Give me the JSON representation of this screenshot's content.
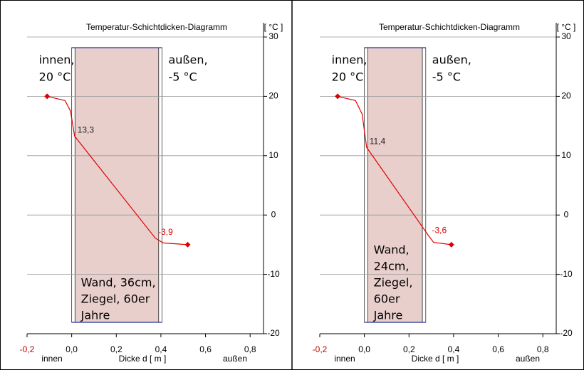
{
  "chart_data": [
    {
      "type": "line",
      "title": "Temperatur-Schichtdicken-Diagramm",
      "y_unit": "[ °C ]",
      "x_label": "Dicke d [ m ]",
      "x_left_label": "innen",
      "x_right_label": "außen",
      "inside_label": [
        "innen,",
        "20 °C"
      ],
      "outside_label": [
        "außen,",
        "-5 °C"
      ],
      "wall_label": [
        "Wand, 36cm,",
        "Ziegel, 60er",
        "Jahre"
      ],
      "layers": [
        {
          "from": 0,
          "to": 0.015,
          "color": "#ffffff"
        },
        {
          "from": 0.015,
          "to": 0.39,
          "color": "#e8cfcc"
        },
        {
          "from": 0.39,
          "to": 0.405,
          "color": "#ffffff"
        }
      ],
      "series": [
        {
          "color": "#e00000",
          "x": [
            -0.11,
            -0.03,
            -0.005,
            0.013,
            0.375,
            0.41,
            0.52
          ],
          "values": [
            20,
            19.3,
            17.5,
            13.3,
            -3.9,
            -4.7,
            -5
          ],
          "value_labels": [
            null,
            null,
            null,
            "13,3",
            "-3,9",
            null,
            null
          ]
        }
      ],
      "xlim": [
        -0.2,
        0.86
      ],
      "ylim": [
        -20,
        30
      ],
      "xticks": [
        {
          "value": -0.2,
          "label": "-0,2"
        },
        {
          "value": 0,
          "label": "0,0"
        },
        {
          "value": 0.2,
          "label": "0,2"
        },
        {
          "value": 0.4,
          "label": "0,4"
        },
        {
          "value": 0.6,
          "label": "0,6"
        },
        {
          "value": 0.8,
          "label": "0,8"
        }
      ],
      "yticks": [
        30,
        20,
        10,
        0,
        -10,
        -20
      ],
      "grid": true
    },
    {
      "type": "line",
      "title": "Temperatur-Schichtdicken-Diagramm",
      "y_unit": "[ °C ]",
      "x_label": "Dicke d [ m ]",
      "x_left_label": "innen",
      "x_right_label": "außen",
      "inside_label": [
        "innen,",
        "20 °C"
      ],
      "outside_label": [
        "außen,",
        "-5 °C"
      ],
      "wall_label": [
        "Wand,",
        "24cm,",
        "Ziegel,",
        "60er",
        "Jahre"
      ],
      "layers": [
        {
          "from": 0,
          "to": 0.015,
          "color": "#ffffff"
        },
        {
          "from": 0.015,
          "to": 0.26,
          "color": "#e8cfcc"
        },
        {
          "from": 0.26,
          "to": 0.275,
          "color": "#ffffff"
        }
      ],
      "series": [
        {
          "color": "#e00000",
          "x": [
            -0.12,
            -0.04,
            -0.01,
            0.01,
            0.29,
            0.31,
            0.39
          ],
          "values": [
            20,
            19.3,
            17,
            11.4,
            -3.6,
            -4.6,
            -5
          ],
          "value_labels": [
            null,
            null,
            null,
            "11,4",
            "-3,6",
            null,
            null
          ]
        }
      ],
      "xlim": [
        -0.2,
        0.86
      ],
      "ylim": [
        -20,
        30
      ],
      "xticks": [
        {
          "value": -0.2,
          "label": "-0,2"
        },
        {
          "value": 0,
          "label": "0,0"
        },
        {
          "value": 0.2,
          "label": "0,2"
        },
        {
          "value": 0.4,
          "label": "0,4"
        },
        {
          "value": 0.6,
          "label": "0,6"
        },
        {
          "value": 0.8,
          "label": "0,8"
        }
      ],
      "yticks": [
        30,
        20,
        10,
        0,
        -10,
        -20
      ],
      "grid": true
    }
  ]
}
